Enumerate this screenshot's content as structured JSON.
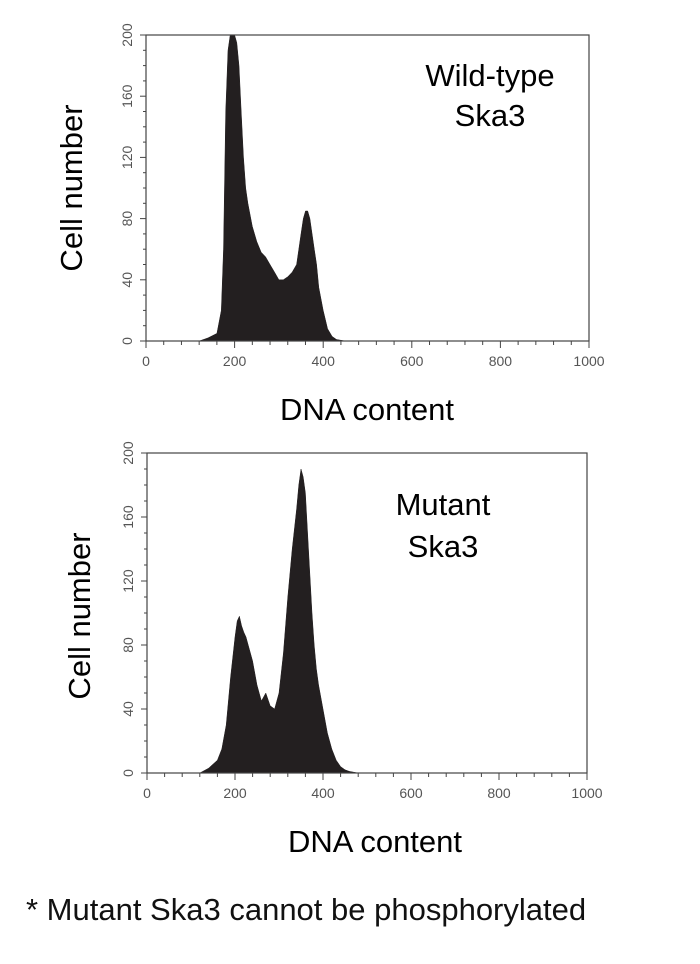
{
  "footnote": "* Mutant Ska3 cannot be phosphorylated",
  "chart_data": [
    {
      "type": "area",
      "annotation_lines": [
        "Wild-type",
        "Ska3"
      ],
      "xlabel": "DNA content",
      "ylabel": "Cell number",
      "xlim": [
        0,
        1000
      ],
      "ylim": [
        0,
        200
      ],
      "xticks": [
        0,
        200,
        400,
        600,
        800,
        1000
      ],
      "yticks": [
        0,
        40,
        80,
        120,
        160,
        200
      ],
      "grid": false,
      "color": "#231f20",
      "series": [
        {
          "x": [
            0,
            120,
            140,
            160,
            170,
            175,
            180,
            185,
            190,
            195,
            200,
            205,
            210,
            215,
            220,
            225,
            230,
            240,
            250,
            260,
            270,
            280,
            290,
            300,
            310,
            320,
            330,
            340,
            345,
            350,
            355,
            360,
            365,
            370,
            375,
            380,
            385,
            390,
            400,
            410,
            420,
            430,
            450,
            1000
          ],
          "y": [
            0,
            0,
            2,
            5,
            20,
            60,
            150,
            190,
            200,
            200,
            200,
            195,
            180,
            150,
            120,
            100,
            90,
            75,
            65,
            58,
            55,
            50,
            45,
            40,
            40,
            42,
            45,
            50,
            60,
            70,
            80,
            85,
            85,
            80,
            70,
            60,
            50,
            35,
            20,
            8,
            3,
            1,
            0,
            0
          ]
        }
      ]
    },
    {
      "type": "area",
      "annotation_lines": [
        "Mutant",
        "Ska3"
      ],
      "xlabel": "DNA content",
      "ylabel": "Cell number",
      "xlim": [
        0,
        1000
      ],
      "ylim": [
        0,
        200
      ],
      "xticks": [
        0,
        200,
        400,
        600,
        800,
        1000
      ],
      "yticks": [
        0,
        40,
        80,
        120,
        160,
        200
      ],
      "grid": false,
      "color": "#231f20",
      "series": [
        {
          "x": [
            0,
            120,
            140,
            160,
            170,
            180,
            190,
            200,
            205,
            210,
            215,
            220,
            225,
            230,
            240,
            250,
            260,
            270,
            280,
            290,
            300,
            310,
            320,
            330,
            340,
            345,
            350,
            355,
            360,
            365,
            370,
            375,
            380,
            385,
            390,
            400,
            410,
            420,
            430,
            440,
            450,
            460,
            480,
            1000
          ],
          "y": [
            0,
            0,
            3,
            8,
            15,
            30,
            60,
            85,
            95,
            98,
            92,
            88,
            85,
            80,
            70,
            55,
            45,
            50,
            42,
            40,
            50,
            75,
            110,
            140,
            165,
            180,
            190,
            185,
            175,
            150,
            125,
            100,
            80,
            65,
            55,
            40,
            25,
            15,
            8,
            4,
            2,
            1,
            0,
            0
          ]
        }
      ]
    }
  ]
}
